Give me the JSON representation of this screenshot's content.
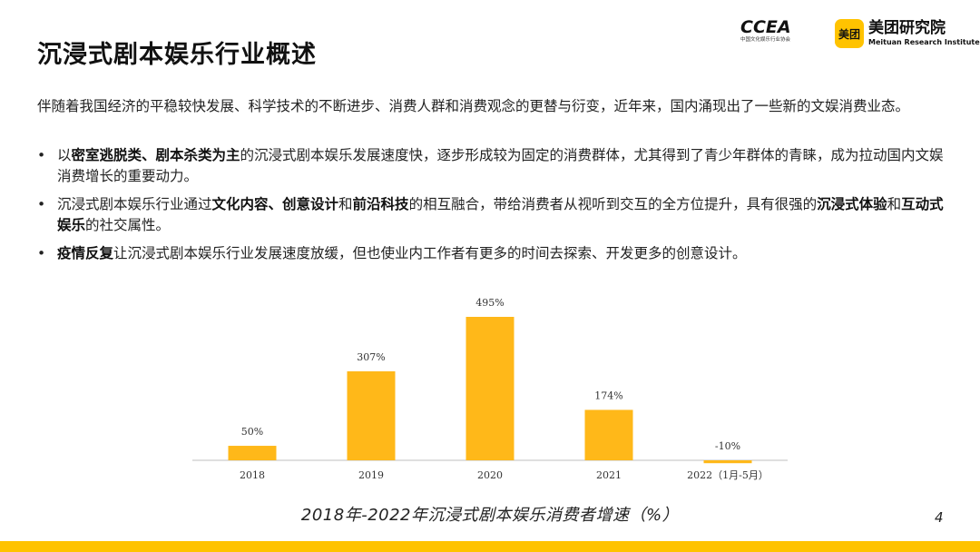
{
  "slide": {
    "title": "沉浸式剧本娱乐行业概述",
    "page_number": "4"
  },
  "logos": {
    "ccea_word": "CCEA",
    "ccea_sub": "中国文化娱乐行业协会",
    "meituan_box": "美团",
    "meituan_name": "美团研究院",
    "meituan_en": "Meituan Research Institute"
  },
  "intro": "伴随着我国经济的平稳较快发展、科学技术的不断进步、消费人群和消费观念的更替与衍变，近年来，国内涌现出了一些新的文娱消费业态。",
  "bullets": [
    {
      "parts": [
        {
          "text": "以",
          "bold": false
        },
        {
          "text": "密室逃脱类、剧本杀类为主",
          "bold": true
        },
        {
          "text": "的沉浸式剧本娱乐发展速度快，逐步形成较为固定的消费群体，尤其得到了青少年群体的青睐，成为拉动国内文娱消费增长的重要动力。",
          "bold": false
        }
      ]
    },
    {
      "parts": [
        {
          "text": "沉浸式剧本娱乐行业通过",
          "bold": false
        },
        {
          "text": "文化内容、创意设计",
          "bold": true
        },
        {
          "text": "和",
          "bold": false
        },
        {
          "text": "前沿科技",
          "bold": true
        },
        {
          "text": "的相互融合，带给消费者从视听到交互的全方位提升，具有很强的",
          "bold": false
        },
        {
          "text": "沉浸式体验",
          "bold": true
        },
        {
          "text": "和",
          "bold": false
        },
        {
          "text": "互动式娱乐",
          "bold": true
        },
        {
          "text": "的社交属性。",
          "bold": false
        }
      ]
    },
    {
      "parts": [
        {
          "text": "疫情反复",
          "bold": true
        },
        {
          "text": "让沉浸式剧本娱乐行业发展速度放缓，但也使业内工作者有更多的时间去探索、开发更多的创意设计。",
          "bold": false
        }
      ]
    }
  ],
  "chart_data": {
    "type": "bar",
    "title": "2018年-2022年沉浸式剧本娱乐消费者增速（%）",
    "categories": [
      "2018",
      "2019",
      "2020",
      "2021",
      "2022（1月-5月）"
    ],
    "values": [
      50,
      307,
      495,
      174,
      -10
    ],
    "value_labels": [
      "50%",
      "307%",
      "495%",
      "174%",
      "-10%"
    ],
    "ylim": [
      -20,
      500
    ],
    "grid": false,
    "bar_color": "#FFB819",
    "axis_color": "#BFBFBF"
  }
}
